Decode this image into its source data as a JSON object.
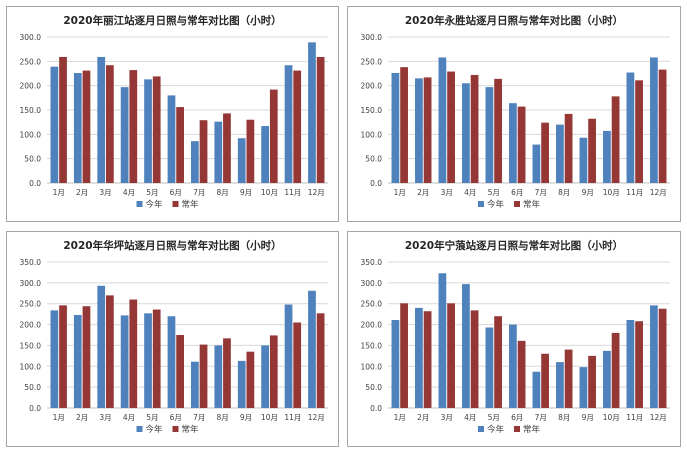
{
  "legend": {
    "this_year": "今年",
    "normal_year": "常年"
  },
  "colors": {
    "this_year": "#4f81bd",
    "normal_year": "#953735",
    "grid": "#d9d9d9",
    "axis": "#bfbfbf",
    "text": "#404040"
  },
  "chart_data": [
    {
      "type": "bar",
      "title": "2020年丽江站逐月日照与常年对比图（小时）",
      "categories": [
        "1月",
        "2月",
        "3月",
        "4月",
        "5月",
        "6月",
        "7月",
        "8月",
        "9月",
        "10月",
        "11月",
        "12月"
      ],
      "series": [
        {
          "name": "今年",
          "values": [
            239,
            226,
            259,
            197,
            213,
            180,
            86,
            126,
            92,
            117,
            242,
            289
          ]
        },
        {
          "name": "常年",
          "values": [
            259,
            231,
            242,
            232,
            219,
            156,
            129,
            143,
            130,
            192,
            231,
            259
          ]
        }
      ],
      "ylim": [
        0,
        300
      ],
      "yticks": [
        "0.0",
        "50.0",
        "100.0",
        "150.0",
        "200.0",
        "250.0",
        "300.0"
      ],
      "legend_position": "bottom"
    },
    {
      "type": "bar",
      "title": "2020年永胜站逐月日照与常年对比图（小时）",
      "categories": [
        "1月",
        "2月",
        "3月",
        "4月",
        "5月",
        "6月",
        "7月",
        "8月",
        "9月",
        "10月",
        "11月",
        "12月"
      ],
      "series": [
        {
          "name": "今年",
          "values": [
            226,
            215,
            258,
            205,
            197,
            164,
            79,
            120,
            93,
            107,
            227,
            258
          ]
        },
        {
          "name": "常年",
          "values": [
            238,
            217,
            229,
            222,
            214,
            157,
            124,
            142,
            132,
            178,
            211,
            233
          ]
        }
      ],
      "ylim": [
        0,
        300
      ],
      "yticks": [
        "0.0",
        "50.0",
        "100.0",
        "150.0",
        "200.0",
        "250.0",
        "300.0"
      ],
      "legend_position": "bottom"
    },
    {
      "type": "bar",
      "title": "2020年华坪站逐月日照与常年对比图（小时）",
      "categories": [
        "1月",
        "2月",
        "3月",
        "4月",
        "5月",
        "6月",
        "7月",
        "8月",
        "9月",
        "10月",
        "11月",
        "12月"
      ],
      "series": [
        {
          "name": "今年",
          "values": [
            234,
            223,
            293,
            222,
            227,
            220,
            111,
            150,
            113,
            150,
            248,
            281
          ]
        },
        {
          "name": "常年",
          "values": [
            246,
            244,
            270,
            260,
            236,
            175,
            152,
            167,
            135,
            174,
            205,
            227
          ]
        }
      ],
      "ylim": [
        0,
        350
      ],
      "yticks": [
        "0.0",
        "50.0",
        "100.0",
        "150.0",
        "200.0",
        "250.0",
        "300.0",
        "350.0"
      ],
      "legend_position": "bottom"
    },
    {
      "type": "bar",
      "title": "2020年宁蒗站逐月日照与常年对比图（小时）",
      "categories": [
        "1月",
        "2月",
        "3月",
        "4月",
        "5月",
        "6月",
        "7月",
        "8月",
        "9月",
        "10月",
        "11月",
        "12月"
      ],
      "series": [
        {
          "name": "今年",
          "values": [
            211,
            240,
            323,
            297,
            193,
            200,
            87,
            110,
            98,
            137,
            211,
            246
          ]
        },
        {
          "name": "常年",
          "values": [
            251,
            232,
            251,
            234,
            220,
            161,
            130,
            140,
            125,
            180,
            208,
            238
          ]
        }
      ],
      "ylim": [
        0,
        350
      ],
      "yticks": [
        "0.0",
        "50.0",
        "100.0",
        "150.0",
        "200.0",
        "250.0",
        "300.0",
        "350.0"
      ],
      "legend_position": "bottom"
    }
  ]
}
